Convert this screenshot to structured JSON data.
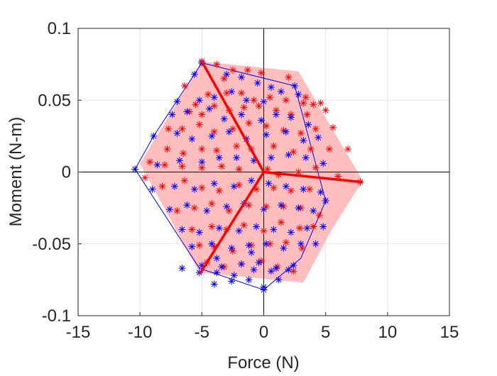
{
  "chart_data": {
    "type": "scatter",
    "title": "",
    "xlabel": "Force (N)",
    "ylabel": "Moment (N-m)",
    "xlim": [
      -15,
      15
    ],
    "ylim": [
      -0.1,
      0.1
    ],
    "xticks": [
      -15,
      -10,
      -5,
      0,
      5,
      10,
      15
    ],
    "yticks": [
      -0.1,
      -0.05,
      0,
      0.05,
      0.1
    ],
    "xtick_labels": [
      "-15",
      "-10",
      "-5",
      "0",
      "5",
      "10",
      "15"
    ],
    "ytick_labels": [
      "-0.1",
      "-0.05",
      "0",
      "0.05",
      "0.1"
    ],
    "grid": true,
    "colors": {
      "red": "#ff0000",
      "blue": "#0000ff",
      "shade": "#ffb3b3",
      "axis": "#000000"
    },
    "red_region": {
      "x": [
        -5.0,
        2.8,
        8.0,
        5.5,
        3.2,
        -5.2,
        -10.0
      ],
      "y": [
        0.077,
        0.07,
        -0.006,
        -0.04,
        -0.077,
        -0.07,
        0.006
      ]
    },
    "blue_hull": {
      "x": [
        -5.0,
        2.5,
        5.0,
        3.0,
        0.0,
        -5.2,
        -10.4,
        -8.9
      ],
      "y": [
        0.076,
        0.06,
        -0.02,
        -0.06,
        -0.082,
        -0.067,
        0.002,
        0.025
      ]
    },
    "red_lines": [
      {
        "x": [
          0,
          -5.0
        ],
        "y": [
          0,
          0.077
        ]
      },
      {
        "x": [
          0,
          7.9
        ],
        "y": [
          0,
          -0.007
        ]
      },
      {
        "x": [
          0,
          -5.1
        ],
        "y": [
          0,
          -0.07
        ]
      }
    ],
    "series": [
      {
        "color": "red",
        "marker": "asterisk",
        "x": [
          -5.0,
          -3.8,
          -3.2,
          -2.5,
          -1.3,
          -0.2,
          2.0,
          3.2,
          4.0,
          -6.4,
          -5.5,
          -4.5,
          -3.0,
          -1.8,
          -0.8,
          0.5,
          1.8,
          3.4,
          4.6,
          -6.0,
          -5.0,
          -4.0,
          -2.8,
          -1.6,
          -0.4,
          1.0,
          2.2,
          3.5,
          5.0,
          -7.7,
          -6.6,
          -5.2,
          -4.0,
          -2.5,
          -1.2,
          0.2,
          1.6,
          3.0,
          4.2,
          5.6,
          -9.2,
          -7.8,
          -6.5,
          -5.0,
          -3.8,
          -2.2,
          -1.0,
          0.8,
          2.4,
          3.8,
          5.3,
          6.8,
          -9.6,
          -8.0,
          -6.6,
          -5.0,
          -3.4,
          -2.0,
          0.3,
          1.2,
          2.8,
          4.2,
          6.0,
          7.8,
          -8.2,
          -6.4,
          -5.0,
          -3.6,
          -2.0,
          -0.6,
          0.8,
          2.2,
          3.7,
          5.0,
          -7.0,
          -5.6,
          -4.2,
          -2.8,
          -1.2,
          0.2,
          1.6,
          3.0,
          4.5,
          -5.8,
          -4.2,
          -3.0,
          -1.6,
          0.0,
          1.4,
          2.9,
          4.0,
          -5.2,
          -4.0,
          -2.5,
          -1.0,
          0.5,
          1.8,
          3.1,
          -4.6,
          -3.2,
          -1.8,
          -0.2,
          1.1,
          2.4
        ],
        "y": [
          0.077,
          0.075,
          0.065,
          0.071,
          0.071,
          0.069,
          0.066,
          0.048,
          0.047,
          0.06,
          0.047,
          0.054,
          0.055,
          0.055,
          0.05,
          0.052,
          0.05,
          0.052,
          0.048,
          0.042,
          0.04,
          0.046,
          0.043,
          0.045,
          0.046,
          0.043,
          0.04,
          0.04,
          0.043,
          0.03,
          0.03,
          0.033,
          0.028,
          0.03,
          0.034,
          0.032,
          0.029,
          0.027,
          0.03,
          0.031,
          0.007,
          0.016,
          0.013,
          0.016,
          0.015,
          0.018,
          0.016,
          0.018,
          0.014,
          0.016,
          0.016,
          0.016,
          -0.004,
          0.005,
          0.004,
          0.003,
          0.004,
          0.002,
          0.002,
          -0.002,
          0.0,
          0.003,
          -0.003,
          -0.007,
          -0.01,
          -0.006,
          -0.011,
          -0.013,
          -0.009,
          -0.012,
          -0.011,
          -0.013,
          -0.012,
          -0.02,
          -0.027,
          -0.025,
          -0.022,
          -0.027,
          -0.023,
          -0.024,
          -0.024,
          -0.025,
          -0.03,
          -0.04,
          -0.038,
          -0.04,
          -0.037,
          -0.041,
          -0.035,
          -0.039,
          -0.038,
          -0.051,
          -0.052,
          -0.055,
          -0.051,
          -0.05,
          -0.049,
          -0.053,
          -0.063,
          -0.066,
          -0.064,
          -0.062,
          -0.066,
          -0.069
        ]
      },
      {
        "color": "blue",
        "marker": "asterisk",
        "x": [
          -5.0,
          -5.6,
          -3.0,
          -1.8,
          -0.5,
          0.6,
          2.5,
          -7.0,
          -5.2,
          -4.0,
          -2.6,
          -1.4,
          0.0,
          1.4,
          2.8,
          -7.4,
          -6.2,
          -4.4,
          -3.2,
          -1.8,
          -0.2,
          1.0,
          2.2,
          3.6,
          -8.9,
          -7.0,
          -5.8,
          -4.2,
          -2.8,
          -1.4,
          0.2,
          1.8,
          3.2,
          4.4,
          -10.4,
          -8.6,
          -6.8,
          -5.0,
          -3.6,
          -2.2,
          -0.8,
          0.6,
          2.0,
          3.4,
          4.8,
          -9.0,
          -7.2,
          -5.6,
          -4.0,
          -2.4,
          -1.0,
          0.4,
          1.8,
          3.2,
          4.6,
          5.0,
          -7.6,
          -6.2,
          -4.6,
          -3.0,
          -1.6,
          0.0,
          1.4,
          2.8,
          4.0,
          -6.6,
          -5.2,
          -3.6,
          -2.0,
          -0.6,
          0.8,
          2.2,
          3.5,
          4.8,
          -5.8,
          -4.2,
          -2.6,
          -1.2,
          0.2,
          1.6,
          3.0,
          4.2,
          -6.6,
          -5.0,
          -3.4,
          -1.8,
          -0.4,
          1.0,
          2.4,
          -5.2,
          -3.8,
          -2.4,
          -0.8,
          0.6,
          2.0,
          -4.0,
          -2.6,
          -1.2,
          0.0,
          1.2,
          -3.8,
          -1.0,
          0.0
        ],
        "y": [
          0.076,
          0.068,
          0.068,
          0.066,
          0.062,
          0.059,
          0.06,
          0.049,
          0.05,
          0.052,
          0.056,
          0.05,
          0.049,
          0.056,
          0.054,
          0.04,
          0.042,
          0.044,
          0.037,
          0.04,
          0.036,
          0.04,
          0.038,
          0.033,
          0.025,
          0.027,
          0.023,
          0.025,
          0.028,
          0.023,
          0.026,
          0.028,
          0.022,
          0.024,
          0.002,
          0.005,
          0.008,
          0.007,
          0.01,
          0.01,
          0.008,
          0.01,
          0.012,
          0.01,
          0.006,
          -0.012,
          -0.01,
          -0.012,
          -0.008,
          -0.01,
          -0.006,
          -0.008,
          -0.01,
          -0.012,
          -0.014,
          -0.02,
          -0.026,
          -0.023,
          -0.027,
          -0.024,
          -0.022,
          -0.026,
          -0.023,
          -0.025,
          -0.027,
          -0.04,
          -0.042,
          -0.039,
          -0.041,
          -0.038,
          -0.04,
          -0.042,
          -0.039,
          -0.038,
          -0.052,
          -0.05,
          -0.053,
          -0.051,
          -0.05,
          -0.053,
          -0.05,
          -0.05,
          -0.067,
          -0.065,
          -0.066,
          -0.064,
          -0.063,
          -0.067,
          -0.065,
          -0.07,
          -0.07,
          -0.072,
          -0.068,
          -0.069,
          -0.068,
          -0.078,
          -0.076,
          -0.075,
          -0.082,
          -0.075,
          -0.06,
          -0.056,
          -0.08
        ]
      }
    ]
  }
}
